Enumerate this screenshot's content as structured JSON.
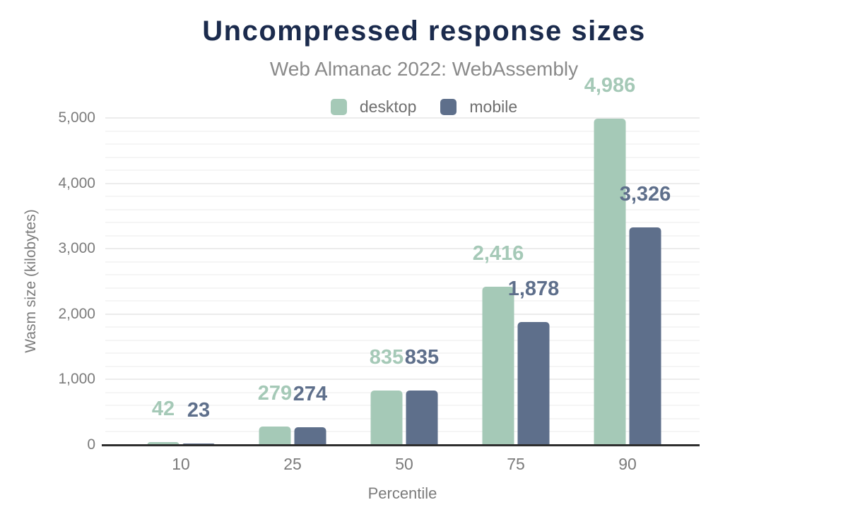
{
  "header": {
    "title": "Uncompressed response sizes",
    "subtitle": "Web Almanac 2022: WebAssembly"
  },
  "colors": {
    "title": "#1b2b4d",
    "subtitle_text": "#8a8a8a",
    "axis_text": "#7b7b7b",
    "legend_text": "#6f6f6f",
    "axis_line": "#2e2e2e",
    "gridline_minor": "#f5f5f5",
    "gridline_major": "#ececec",
    "desktop": "#a5c9b7",
    "mobile": "#5e6f8b"
  },
  "chart_data": {
    "type": "bar",
    "title": "Uncompressed response sizes",
    "subtitle": "Web Almanac 2022: WebAssembly",
    "categories": [
      "10",
      "25",
      "50",
      "75",
      "90"
    ],
    "series": [
      {
        "name": "desktop",
        "color": "#a5c9b7",
        "values": [
          42,
          279,
          835,
          2416,
          4986
        ],
        "labels": [
          "42",
          "279",
          "835",
          "2,416",
          "4,986"
        ]
      },
      {
        "name": "mobile",
        "color": "#5e6f8b",
        "values": [
          23,
          274,
          835,
          1878,
          3326
        ],
        "labels": [
          "23",
          "274",
          "835",
          "1,878",
          "3,326"
        ]
      }
    ],
    "xlabel": "Percentile",
    "ylabel": "Wasm size (kilobytes)",
    "ylim": [
      0,
      5000
    ],
    "yticks": [
      0,
      1000,
      2000,
      3000,
      4000,
      5000
    ],
    "ytick_labels": [
      "0",
      "1,000",
      "2,000",
      "3,000",
      "4,000",
      "5,000"
    ],
    "grid": {
      "on": true,
      "minor_step": 200,
      "major_step": 1000
    },
    "legend_position": "top-center",
    "bar_value_labels": true
  }
}
